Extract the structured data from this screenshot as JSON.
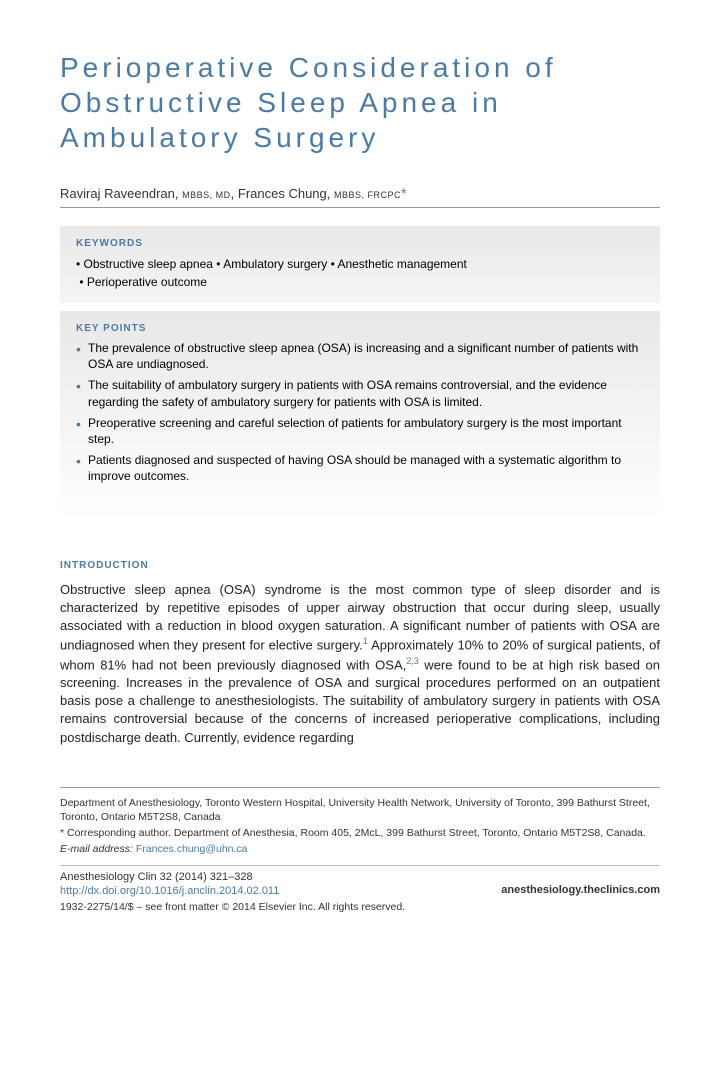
{
  "title": "Perioperative Consideration of Obstructive Sleep Apnea in Ambulatory Surgery",
  "authors": [
    {
      "name": "Raviraj Raveendran",
      "credentials": "MBBS, MD"
    },
    {
      "name": "Frances Chung",
      "credentials": "MBBS, FRCPC"
    }
  ],
  "corresponding_mark": "*",
  "keywords_heading": "KEYWORDS",
  "keywords": [
    "Obstructive sleep apnea",
    "Ambulatory surgery",
    "Anesthetic management",
    "Perioperative outcome"
  ],
  "keypoints_heading": "KEY POINTS",
  "keypoints": [
    "The prevalence of obstructive sleep apnea (OSA) is increasing and a significant number of patients with OSA are undiagnosed.",
    "The suitability of ambulatory surgery in patients with OSA remains controversial, and the evidence regarding the safety of ambulatory surgery for patients with OSA is limited.",
    "Preoperative screening and careful selection of patients for ambulatory surgery is the most important step.",
    "Patients diagnosed and suspected of having OSA should be managed with a systematic algorithm to improve outcomes."
  ],
  "intro_heading": "INTRODUCTION",
  "intro_text_1": "Obstructive sleep apnea (OSA) syndrome is the most common type of sleep disorder and is characterized by repetitive episodes of upper airway obstruction that occur during sleep, usually associated with a reduction in blood oxygen saturation. A significant number of patients with OSA are undiagnosed when they present for elective surgery.",
  "intro_ref_1": "1",
  "intro_text_2": " Approximately 10% to 20% of surgical patients, of whom 81% had not been previously diagnosed with OSA,",
  "intro_ref_2": "2,3",
  "intro_text_3": " were found to be at high risk based on screening. Increases in the prevalence of OSA and surgical procedures performed on an outpatient basis pose a challenge to anesthesiologists. The suitability of ambulatory surgery in patients with OSA remains controversial because of the concerns of increased perioperative complications, including postdischarge death. Currently, evidence regarding",
  "footer": {
    "affiliation": "Department of Anesthesiology, Toronto Western Hospital, University Health Network, University of Toronto, 399 Bathurst Street, Toronto, Ontario M5T2S8, Canada",
    "corr_label": "* Corresponding author. Department of Anesthesia, Room 405, 2McL, 399 Bathurst Street, Toronto, Ontario M5T2S8, Canada.",
    "email_label": "E-mail address:",
    "email": "Frances.chung@uhn.ca",
    "journal": "Anesthesiology Clin 32 (2014) 321–328",
    "doi": "http://dx.doi.org/10.1016/j.anclin.2014.02.011",
    "site": "anesthesiology.theclinics.com",
    "copyright": "1932-2275/14/$ – see front matter © 2014 Elsevier Inc. All rights reserved."
  },
  "colors": {
    "accent": "#4a7ba6",
    "box_bg_top": "#e8e8e8",
    "box_bg_bottom": "#f5f5f5",
    "text": "#000000",
    "border": "#999999"
  }
}
